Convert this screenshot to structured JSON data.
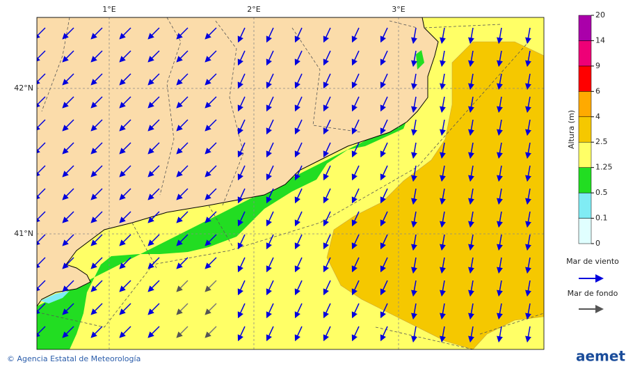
{
  "map": {
    "lon_labels": [
      "1°E",
      "2°E",
      "3°E"
    ],
    "lat_labels": [
      "42°N",
      "41°N"
    ]
  },
  "colorbar": {
    "title": "Altura (m)",
    "levels": [
      0,
      0.1,
      0.5,
      1.25,
      2.5,
      4,
      6,
      9,
      14,
      20
    ],
    "colors": [
      "#e0ffff",
      "#80ecf4",
      "#22dd22",
      "#ffff66",
      "#f5c800",
      "#ffaa00",
      "#ff0000",
      "#ee0077",
      "#aa00aa"
    ]
  },
  "legend": {
    "wind_sea": "Mar de viento",
    "swell": "Mar de fondo"
  },
  "footer": {
    "credit": "© Agencia Estatal de Meteorología",
    "logo": "aemet"
  }
}
